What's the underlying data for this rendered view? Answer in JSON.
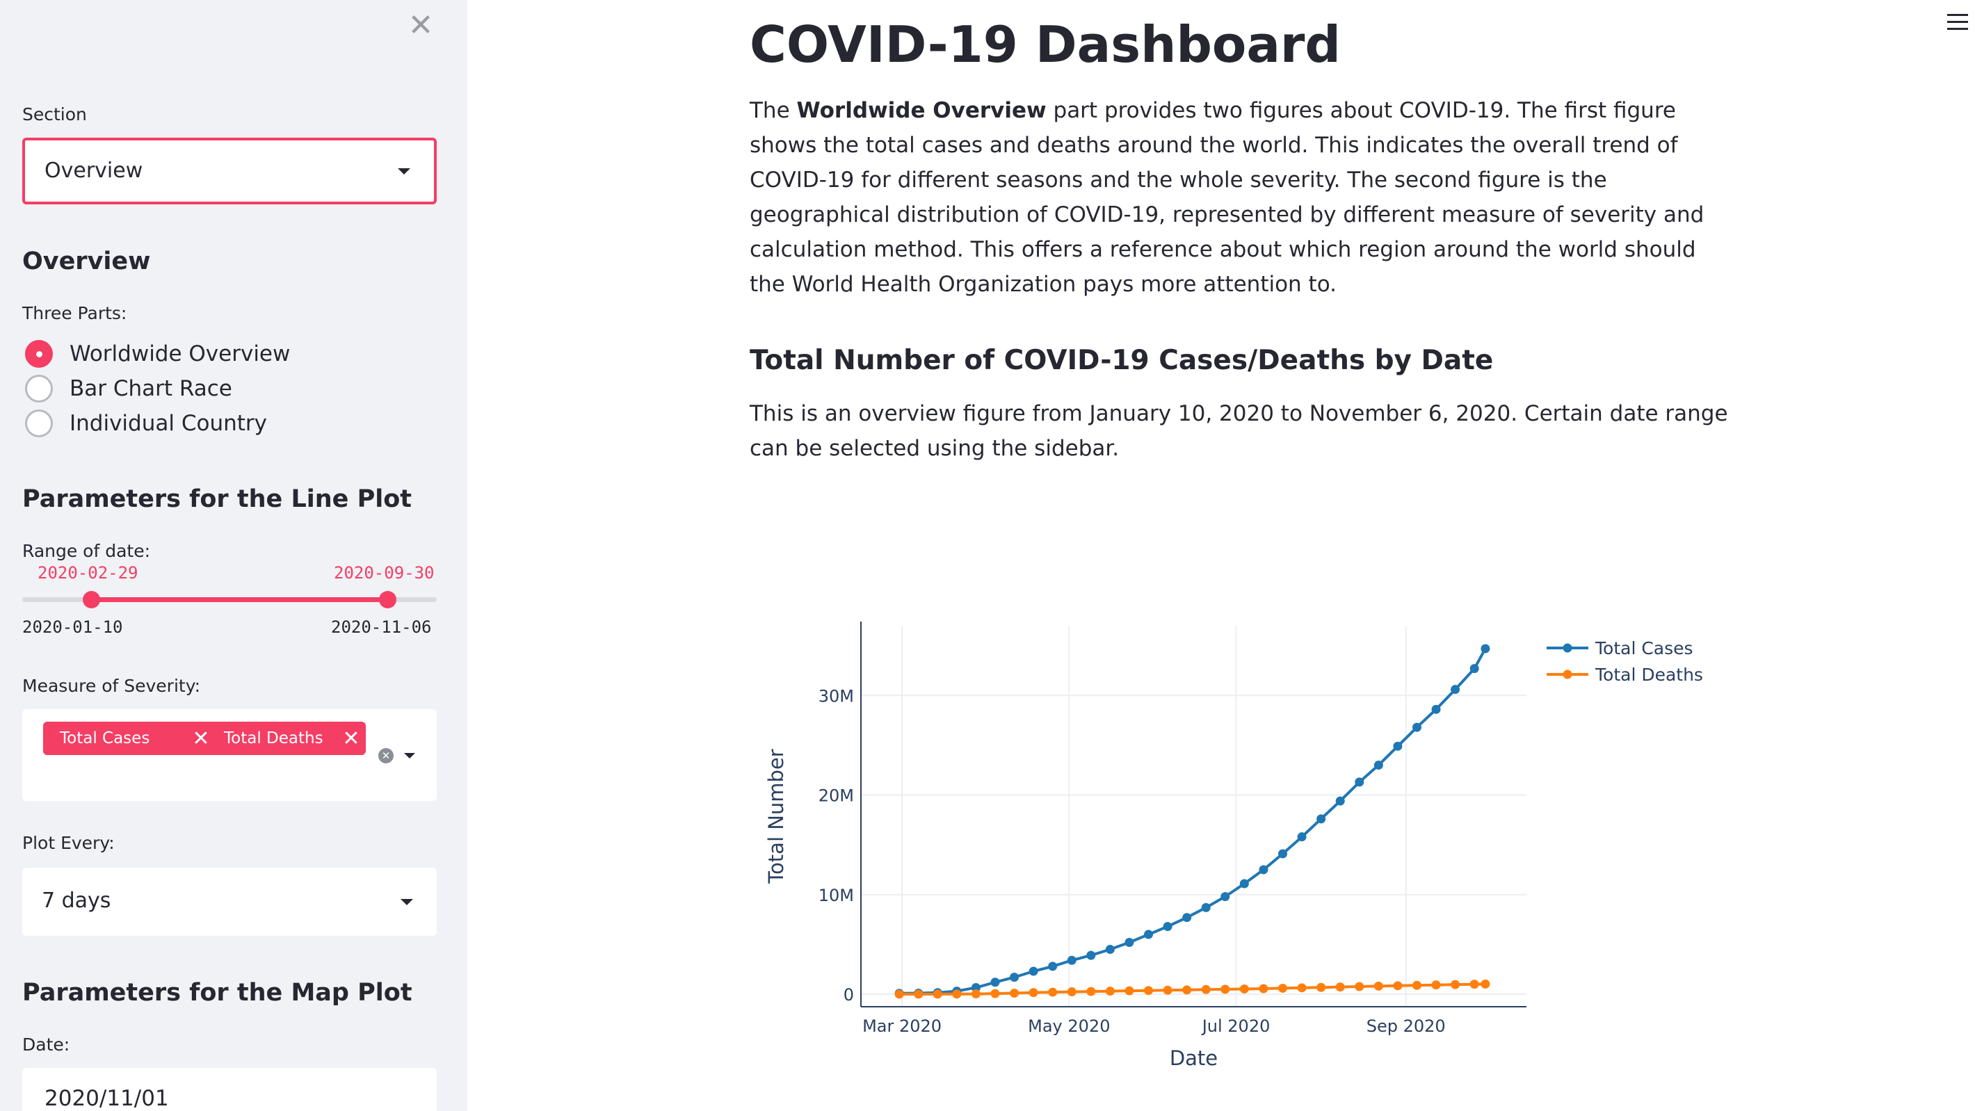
{
  "sidebar": {
    "close_icon": "close-icon",
    "section_label": "Section",
    "section_value": "Overview",
    "overview_heading": "Overview",
    "three_parts_label": "Three Parts:",
    "radio_options": [
      "Worldwide Overview",
      "Bar Chart Race",
      "Individual Country"
    ],
    "radio_selected": "Worldwide Overview",
    "line_params_heading": "Parameters for the Line Plot",
    "date_range_label": "Range of date:",
    "slider_low": "2020-02-29",
    "slider_high": "2020-09-30",
    "slider_min": "2020-01-10",
    "slider_max": "2020-11-06",
    "severity_label": "Measure of Severity:",
    "severity_tags": [
      "Total Cases",
      "Total Deaths"
    ],
    "plot_every_label": "Plot Every:",
    "plot_every_value": "7 days",
    "map_params_heading": "Parameters for the Map Plot",
    "map_date_label": "Date:",
    "map_date_value": "2020/11/01",
    "accent_color": "#f43e64"
  },
  "main": {
    "menu_icon": "hamburger-menu-icon",
    "title": "COVID-19 Dashboard",
    "intro_pre": "The ",
    "intro_bold": "Worldwide Overview",
    "intro_post": " part provides two figures about COVID-19. The first figure shows the total cases and deaths around the world. This indicates the overall trend of COVID-19 for different seasons and the whole severity. The second figure is the geographical distribution of COVID-19, represented by different measure of severity and calculation method. This offers a reference about which region around the world should the World Health Organization pays more attention to.",
    "section_heading": "Total Number of COVID-19 Cases/Deaths by Date",
    "section_text": "This is an overview figure from January 10, 2020 to November 6, 2020. Certain date range can be selected using the sidebar."
  },
  "chart_data": {
    "type": "line",
    "title": "",
    "xlabel": "Date",
    "ylabel": "Total Number",
    "x_tick_labels": [
      "Mar 2020",
      "May 2020",
      "Jul 2020",
      "Sep 2020"
    ],
    "y_tick_labels": [
      "0",
      "10M",
      "20M",
      "30M"
    ],
    "ylim": [
      0,
      37000000
    ],
    "grid": true,
    "legend": "top-right",
    "x": [
      "2020-02-29",
      "2020-03-07",
      "2020-03-14",
      "2020-03-21",
      "2020-03-28",
      "2020-04-04",
      "2020-04-11",
      "2020-04-18",
      "2020-04-25",
      "2020-05-02",
      "2020-05-09",
      "2020-05-16",
      "2020-05-23",
      "2020-05-30",
      "2020-06-06",
      "2020-06-13",
      "2020-06-20",
      "2020-06-27",
      "2020-07-04",
      "2020-07-11",
      "2020-07-18",
      "2020-07-25",
      "2020-08-01",
      "2020-08-08",
      "2020-08-15",
      "2020-08-22",
      "2020-08-29",
      "2020-09-05",
      "2020-09-12",
      "2020-09-19",
      "2020-09-26",
      "2020-09-30"
    ],
    "series": [
      {
        "name": "Total Cases",
        "color": "#1f77b4",
        "values": [
          86000,
          106000,
          157000,
          305000,
          663000,
          1200000,
          1700000,
          2300000,
          2800000,
          3400000,
          3900000,
          4500000,
          5200000,
          6000000,
          6800000,
          7700000,
          8700000,
          9800000,
          11100000,
          12500000,
          14100000,
          15800000,
          17600000,
          19400000,
          21300000,
          23000000,
          24900000,
          26800000,
          28600000,
          30600000,
          32700000,
          34700000
        ]
      },
      {
        "name": "Total Deaths",
        "color": "#ff7f0e",
        "values": [
          2900,
          3500,
          5800,
          13000,
          31000,
          64000,
          108000,
          165000,
          204000,
          240000,
          274000,
          308000,
          343000,
          370000,
          398000,
          428000,
          467000,
          497000,
          526000,
          560000,
          597000,
          640000,
          680000,
          725000,
          770000,
          810000,
          850000,
          890000,
          930000,
          970000,
          1000000,
          1020000
        ]
      }
    ]
  }
}
